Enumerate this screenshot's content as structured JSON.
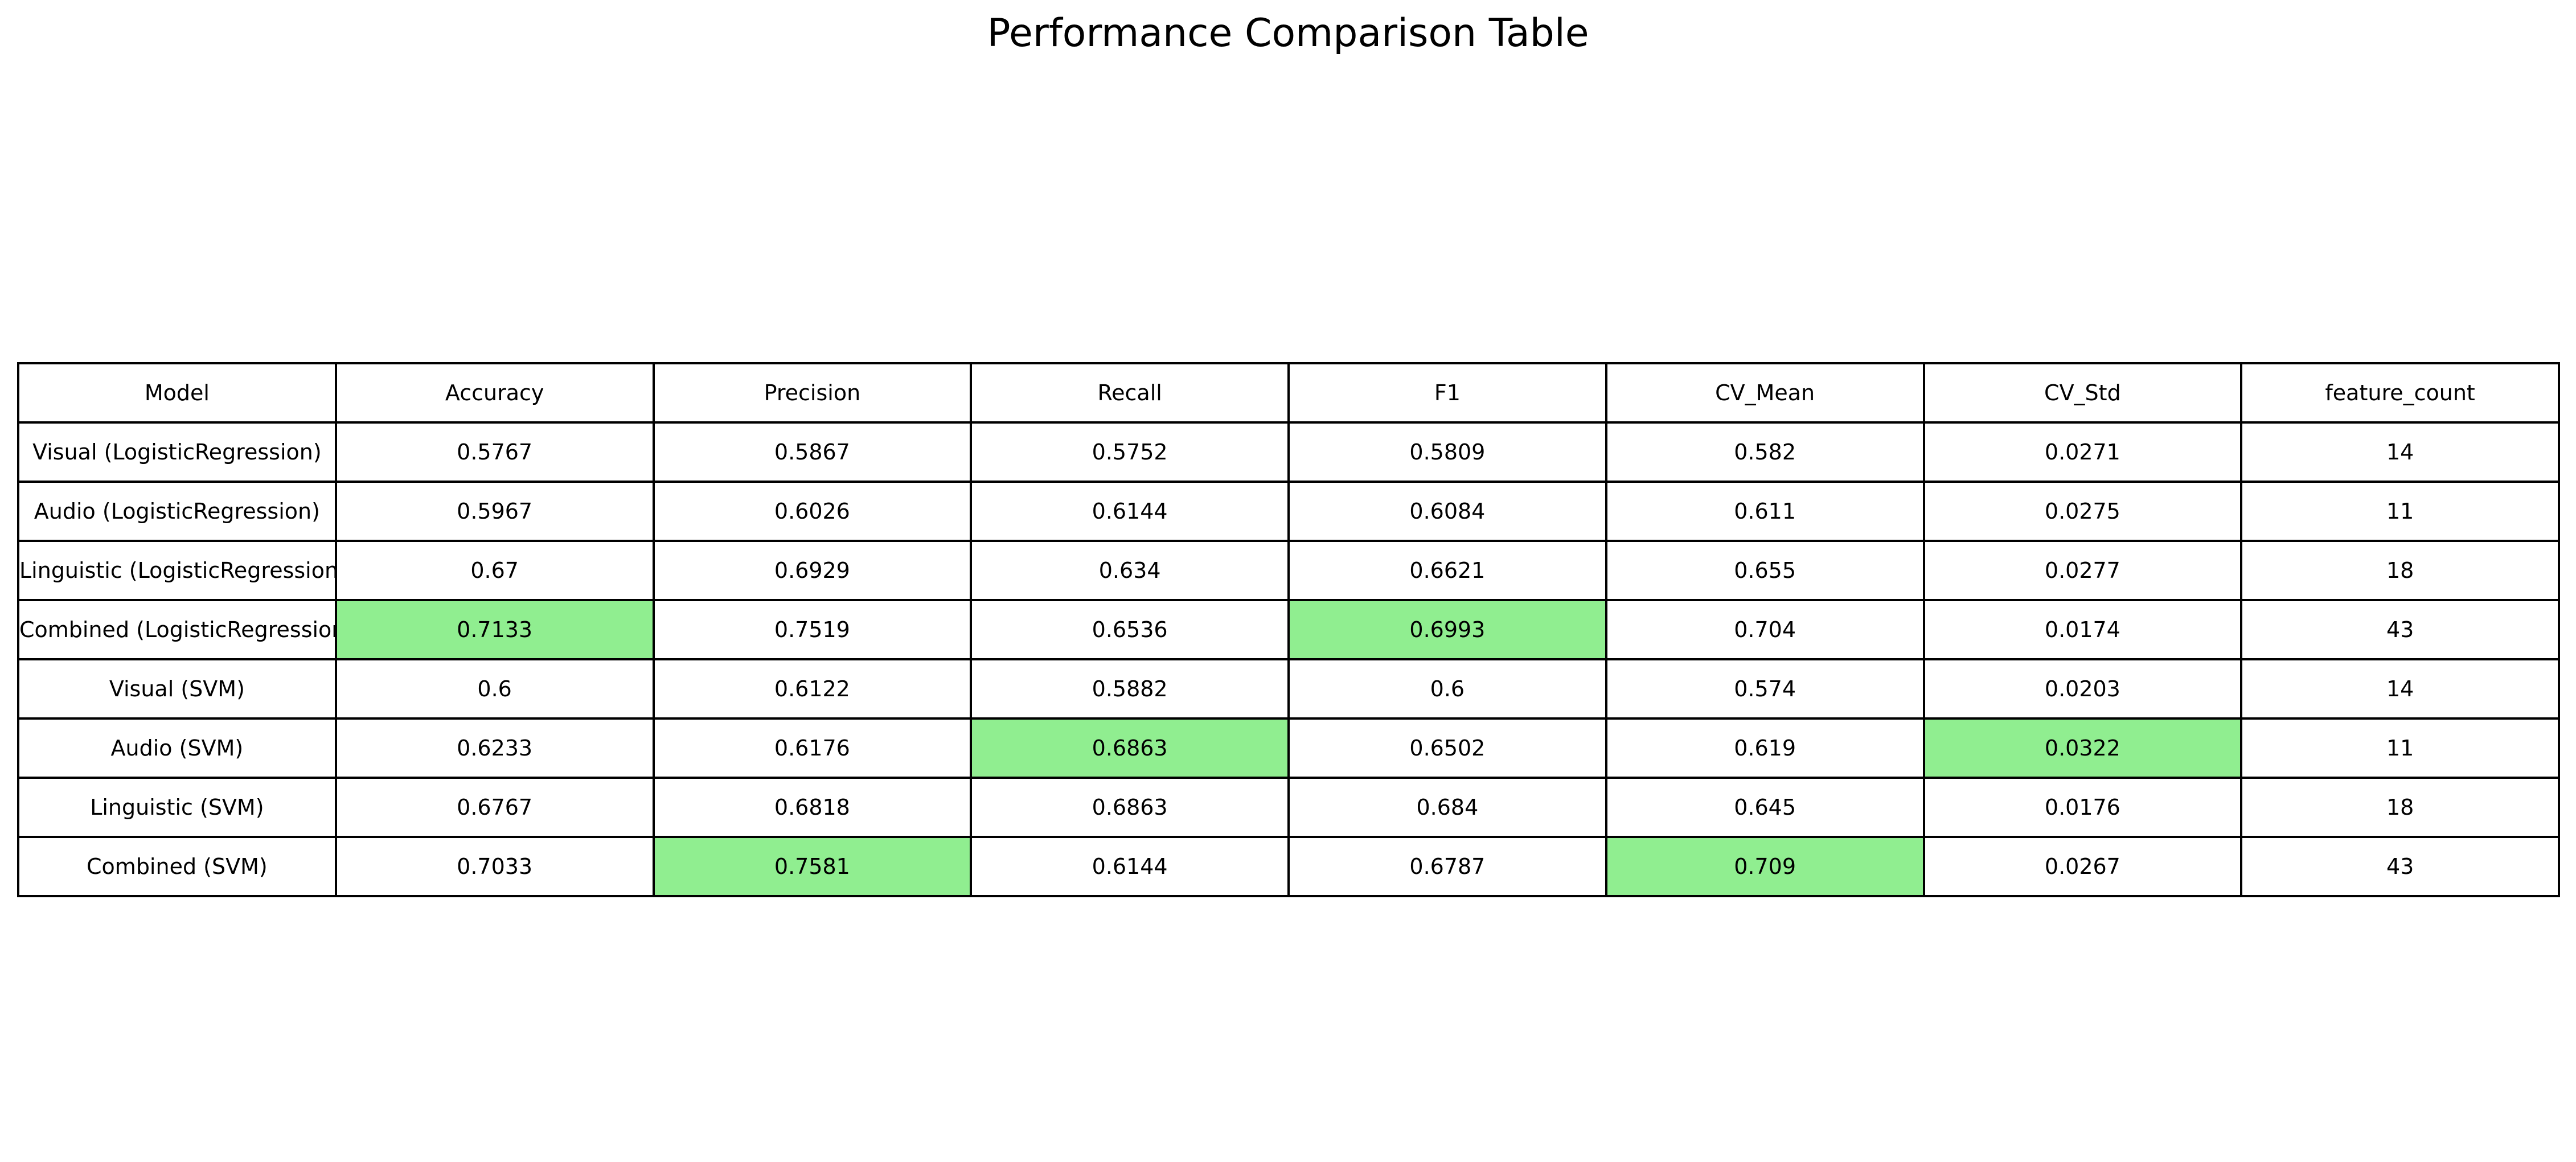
{
  "chart_data": {
    "type": "table",
    "title": "Performance Comparison Table",
    "columns": [
      "Model",
      "Accuracy",
      "Precision",
      "Recall",
      "F1",
      "CV_Mean",
      "CV_Std",
      "feature_count"
    ],
    "rows": [
      [
        "Visual (LogisticRegression)",
        "0.5767",
        "0.5867",
        "0.5752",
        "0.5809",
        "0.582",
        "0.0271",
        "14"
      ],
      [
        "Audio (LogisticRegression)",
        "0.5967",
        "0.6026",
        "0.6144",
        "0.6084",
        "0.611",
        "0.0275",
        "11"
      ],
      [
        "Linguistic (LogisticRegression)",
        "0.67",
        "0.6929",
        "0.634",
        "0.6621",
        "0.655",
        "0.0277",
        "18"
      ],
      [
        "Combined (LogisticRegression)",
        "0.7133",
        "0.7519",
        "0.6536",
        "0.6993",
        "0.704",
        "0.0174",
        "43"
      ],
      [
        "Visual (SVM)",
        "0.6",
        "0.6122",
        "0.5882",
        "0.6",
        "0.574",
        "0.0203",
        "14"
      ],
      [
        "Audio (SVM)",
        "0.6233",
        "0.6176",
        "0.6863",
        "0.6502",
        "0.619",
        "0.0322",
        "11"
      ],
      [
        "Linguistic (SVM)",
        "0.6767",
        "0.6818",
        "0.6863",
        "0.684",
        "0.645",
        "0.0176",
        "18"
      ],
      [
        "Combined (SVM)",
        "0.7033",
        "0.7581",
        "0.6144",
        "0.6787",
        "0.709",
        "0.0267",
        "43"
      ]
    ],
    "highlighted_cells": [
      {
        "row": 3,
        "col": 1
      },
      {
        "row": 3,
        "col": 4
      },
      {
        "row": 5,
        "col": 3
      },
      {
        "row": 5,
        "col": 6
      },
      {
        "row": 7,
        "col": 2
      },
      {
        "row": 7,
        "col": 5
      }
    ],
    "highlight_color": "#90ee90",
    "cell_color": "#ffffff",
    "border_color": "#000000"
  }
}
